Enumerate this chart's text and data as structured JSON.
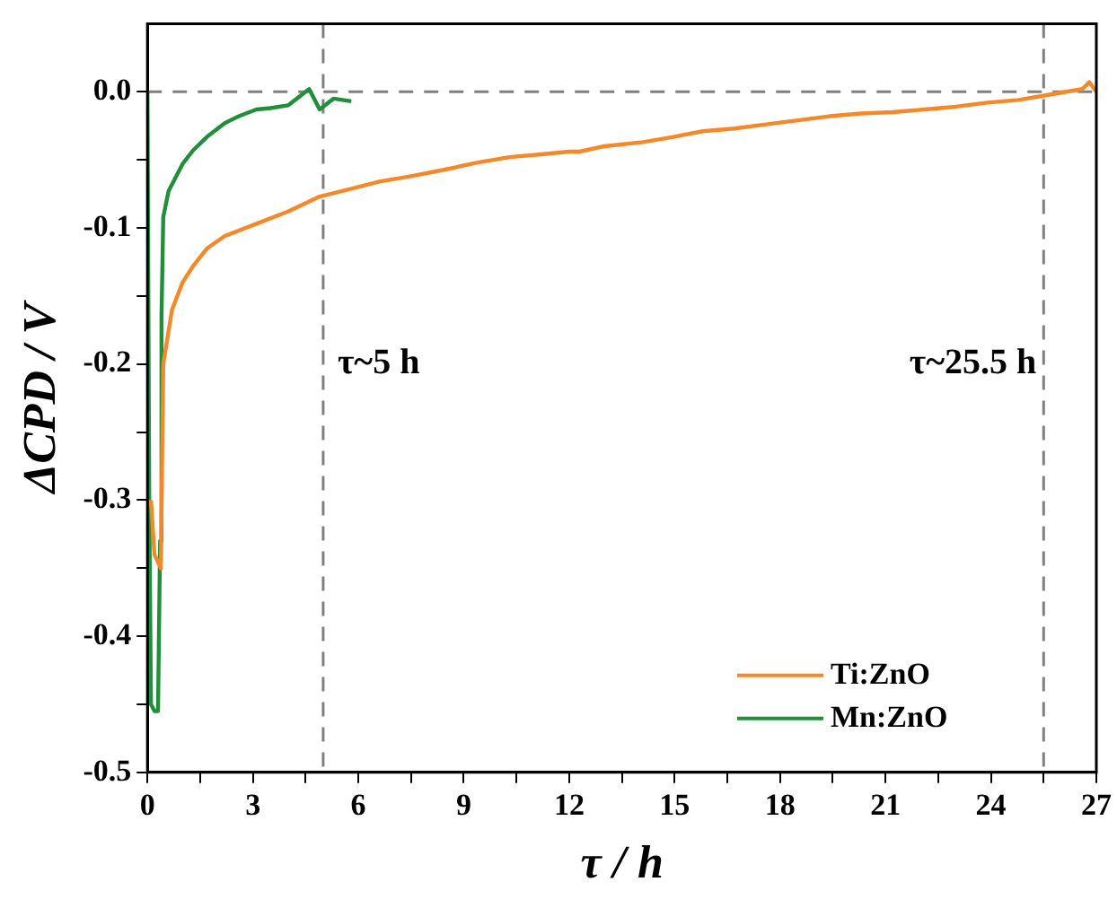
{
  "chart_data": {
    "type": "line",
    "xlabel": "τ / h",
    "ylabel": "ΔCPD / V",
    "xlim": [
      0,
      27
    ],
    "ylim": [
      -0.5,
      0.05
    ],
    "xticks": [
      0,
      {
        "value": 1.5,
        "label": null
      },
      3,
      {
        "value": 4.5,
        "label": null
      },
      6,
      {
        "value": 7.5,
        "label": null
      },
      9,
      {
        "value": 10.5,
        "label": null
      },
      12,
      {
        "value": 13.5,
        "label": null
      },
      15,
      {
        "value": 16.5,
        "label": null
      },
      18,
      {
        "value": 19.5,
        "label": null
      },
      21,
      {
        "value": 22.5,
        "label": null
      },
      24,
      {
        "value": 25.5,
        "label": null
      },
      27
    ],
    "yticks": [
      {
        "value": -0.5,
        "label": "-0.5"
      },
      {
        "value": -0.45,
        "label": null
      },
      {
        "value": -0.4,
        "label": "-0.4"
      },
      {
        "value": -0.35,
        "label": null
      },
      {
        "value": -0.3,
        "label": "-0.3"
      },
      {
        "value": -0.25,
        "label": null
      },
      {
        "value": -0.2,
        "label": "-0.2"
      },
      {
        "value": -0.15,
        "label": null
      },
      {
        "value": -0.1,
        "label": "-0.1"
      },
      {
        "value": -0.05,
        "label": null
      },
      {
        "value": 0,
        "label": "0.0"
      }
    ],
    "grid": false,
    "legend": "bottom right",
    "marker": "none",
    "line_style": "solid",
    "series": [
      {
        "name": "Ti:ZnO",
        "color": "#f5892a",
        "x": [
          0.1,
          0.2,
          0.38,
          0.45,
          0.7,
          1.0,
          1.3,
          1.7,
          2.2,
          3.1,
          4.0,
          4.9,
          5.7,
          6.6,
          7.5,
          8.5,
          9.4,
          10.3,
          11.2,
          12.0,
          12.3,
          13.0,
          14.1,
          15.0,
          15.8,
          16.7,
          17.6,
          18.5,
          19.4,
          20.3,
          21.2,
          22.1,
          23.0,
          23.9,
          24.8,
          25.7,
          26.6,
          26.8,
          27.0
        ],
        "values": [
          -0.3,
          -0.34,
          -0.35,
          -0.2,
          -0.16,
          -0.14,
          -0.128,
          -0.115,
          -0.106,
          -0.097,
          -0.088,
          -0.077,
          -0.072,
          -0.066,
          -0.062,
          -0.057,
          -0.052,
          -0.048,
          -0.046,
          -0.044,
          -0.044,
          -0.04,
          -0.037,
          -0.033,
          -0.029,
          -0.027,
          -0.024,
          -0.021,
          -0.018,
          -0.016,
          -0.015,
          -0.013,
          -0.011,
          -0.008,
          -0.006,
          -0.002,
          0.002,
          0.007,
          0
        ]
      },
      {
        "name": "Mn:ZnO",
        "color": "#1f8f3a",
        "x": [
          0,
          0.05,
          0.1,
          0.2,
          0.3,
          0.36,
          0.4,
          0.45,
          0.6,
          1.0,
          1.3,
          1.7,
          2.2,
          2.6,
          3.1,
          3.5,
          4.0,
          4.6,
          4.9,
          5.3,
          5.8
        ],
        "values": [
          0,
          -0.3,
          -0.45,
          -0.455,
          -0.455,
          -0.33,
          -0.165,
          -0.092,
          -0.073,
          -0.053,
          -0.043,
          -0.033,
          -0.023,
          -0.018,
          -0.013,
          -0.012,
          -0.01,
          0.002,
          -0.013,
          -0.005,
          -0.007
        ]
      }
    ],
    "ref_lines": [
      {
        "axis": "y",
        "value": 0,
        "color": "#808080",
        "line_style": "dashed"
      },
      {
        "axis": "x",
        "value": 5,
        "color": "#808080",
        "line_style": "dashed"
      },
      {
        "axis": "x",
        "value": 25.5,
        "color": "#808080",
        "line_style": "dashed"
      }
    ],
    "annotations": [
      {
        "text": "τ~5 h",
        "x": 5,
        "y": -0.2
      },
      {
        "text": "τ~25.5 h",
        "x": 25.5,
        "y": -0.2
      }
    ]
  }
}
